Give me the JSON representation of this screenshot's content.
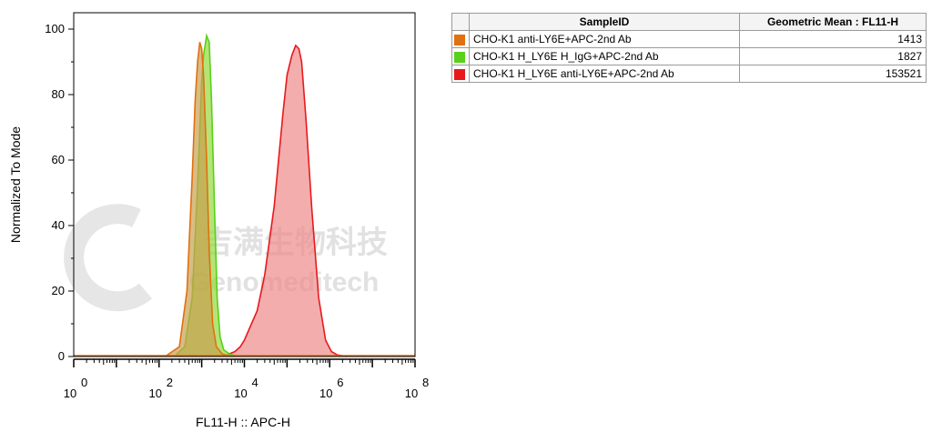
{
  "chart_data": {
    "type": "area",
    "xlabel": "FL11-H :: APC-H",
    "ylabel": "Normalized To Mode",
    "x_scale": "log",
    "xlim": [
      1,
      100000000
    ],
    "ylim": [
      0,
      105
    ],
    "x_ticks": [
      {
        "base": "10",
        "exp": "0",
        "value": 1
      },
      {
        "base": "10",
        "exp": "2",
        "value": 100
      },
      {
        "base": "10",
        "exp": "4",
        "value": 10000
      },
      {
        "base": "10",
        "exp": "6",
        "value": 1000000
      },
      {
        "base": "10",
        "exp": "8",
        "value": 100000000
      }
    ],
    "y_ticks": [
      "0",
      "20",
      "40",
      "60",
      "80",
      "100"
    ],
    "series": [
      {
        "name": "CHO-K1 H_LY6E anti-LY6E+APC-2nd Ab",
        "color": "#e8191c",
        "fill": "#ee8a8a",
        "x": [
          4000,
          6000,
          8000,
          10000,
          20000,
          30000,
          50000,
          80000,
          100000,
          130000,
          160000,
          190000,
          220000,
          280000,
          380000,
          550000,
          800000,
          1100000,
          1500000,
          2500000
        ],
        "y": [
          0.6,
          1.5,
          3,
          5,
          14,
          25,
          46,
          74,
          86,
          92,
          95,
          94,
          90,
          72,
          45,
          18,
          5,
          1.5,
          0.5,
          0
        ]
      },
      {
        "name": "CHO-K1 H_LY6E H_IgG+APC-2nd Ab",
        "color": "#57d11a",
        "fill": "#94d83c",
        "x": [
          250,
          400,
          600,
          800,
          1000,
          1100,
          1300,
          1500,
          1700,
          2000,
          2300,
          2700,
          3300,
          4500,
          7000
        ],
        "y": [
          0.5,
          3,
          18,
          52,
          84,
          92,
          98,
          96,
          78,
          45,
          18,
          6,
          2,
          0.8,
          0
        ]
      },
      {
        "name": "CHO-K1 anti-LY6E+APC-2nd Ab",
        "color": "#e07010",
        "fill": "#c9a050",
        "x": [
          150,
          300,
          450,
          600,
          700,
          800,
          900,
          1000,
          1100,
          1300,
          1500,
          1800,
          2200,
          3000,
          5000
        ],
        "y": [
          0.3,
          3,
          20,
          55,
          78,
          90,
          96,
          94,
          86,
          60,
          32,
          10,
          3,
          0.8,
          0
        ]
      }
    ],
    "watermark": {
      "cn": "吉满生物科技",
      "en": "Genomeditech"
    }
  },
  "table": {
    "headers": [
      "SampleID",
      "Geometric Mean : FL11-H"
    ],
    "rows": [
      {
        "color": "#e07010",
        "sample": "CHO-K1 anti-LY6E+APC-2nd Ab",
        "value": "1413"
      },
      {
        "color": "#57d11a",
        "sample": "CHO-K1 H_LY6E H_IgG+APC-2nd Ab",
        "value": "1827"
      },
      {
        "color": "#e8191c",
        "sample": "CHO-K1 H_LY6E anti-LY6E+APC-2nd Ab",
        "value": "153521"
      }
    ]
  }
}
